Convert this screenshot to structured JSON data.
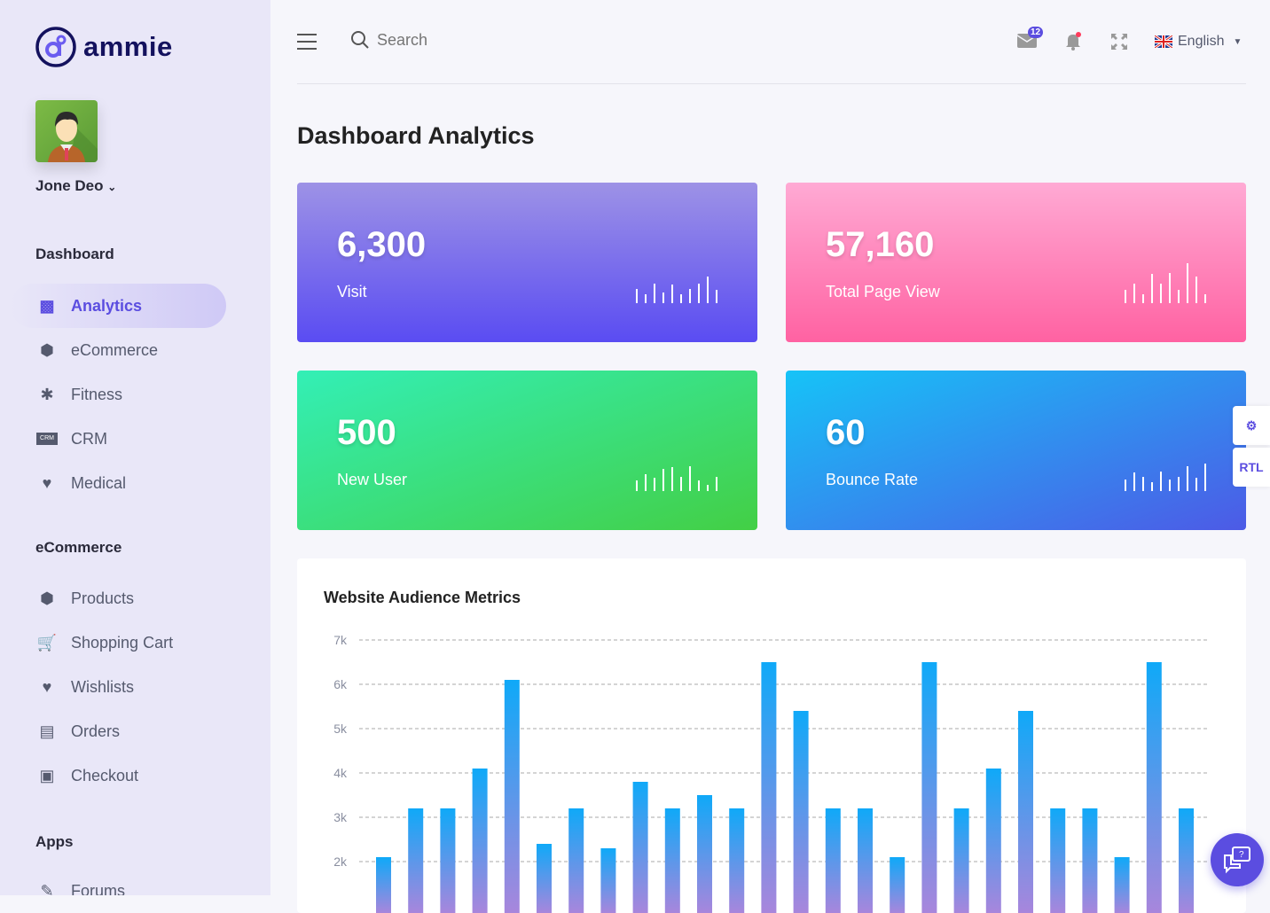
{
  "brand": {
    "name": "ammie"
  },
  "user": {
    "name": "Jone Deo"
  },
  "sidebar": {
    "sections": [
      {
        "title": "Dashboard",
        "items": [
          {
            "label": "Analytics",
            "icon": "chart-icon",
            "active": true
          },
          {
            "label": "eCommerce",
            "icon": "cube-icon"
          },
          {
            "label": "Fitness",
            "icon": "running-icon"
          },
          {
            "label": "CRM",
            "icon": "crm-icon"
          },
          {
            "label": "Medical",
            "icon": "heartbeat-icon"
          }
        ]
      },
      {
        "title": "eCommerce",
        "items": [
          {
            "label": "Products",
            "icon": "cube-icon"
          },
          {
            "label": "Shopping Cart",
            "icon": "cart-icon"
          },
          {
            "label": "Wishlists",
            "icon": "heart-icon"
          },
          {
            "label": "Orders",
            "icon": "clipboard-icon"
          },
          {
            "label": "Checkout",
            "icon": "wallet-icon"
          }
        ]
      },
      {
        "title": "Apps",
        "items": [
          {
            "label": "Forums",
            "icon": "forum-icon"
          }
        ]
      }
    ]
  },
  "header": {
    "search_placeholder": "Search",
    "mail_count": "12",
    "language": "English"
  },
  "page": {
    "title": "Dashboard Analytics"
  },
  "stats": [
    {
      "value": "6,300",
      "label": "Visit",
      "color_from": "#9d92e6",
      "color_to": "#5a4cf2"
    },
    {
      "value": "57,160",
      "label": "Total Page View",
      "color_from": "#ffaad4",
      "color_to": "#ff62a2"
    },
    {
      "value": "500",
      "label": "New User",
      "color_from": "#33efb6",
      "color_to": "#43cf45"
    },
    {
      "value": "60",
      "label": "Bounce Rate",
      "color_from": "#16c3f7",
      "color_to": "#4d5ae6"
    }
  ],
  "side_buttons": {
    "rtl": "RTL"
  },
  "chart_data": {
    "type": "bar",
    "title": "Website Audience Metrics",
    "y_ticks": [
      "7k",
      "6k",
      "5k",
      "4k",
      "3k",
      "2k"
    ],
    "ylim": [
      0,
      7000
    ],
    "grid": true,
    "values": [
      2100,
      3200,
      3200,
      4100,
      6100,
      2400,
      3200,
      2300,
      3800,
      3200,
      3500,
      3200,
      6500,
      5400,
      3200,
      3200,
      2100,
      6500,
      3200,
      4100,
      5400,
      3200,
      3200,
      2100,
      6500,
      3200
    ],
    "bar_color_top": "#0fa9f8",
    "bar_color_bottom": "#a886dc"
  }
}
